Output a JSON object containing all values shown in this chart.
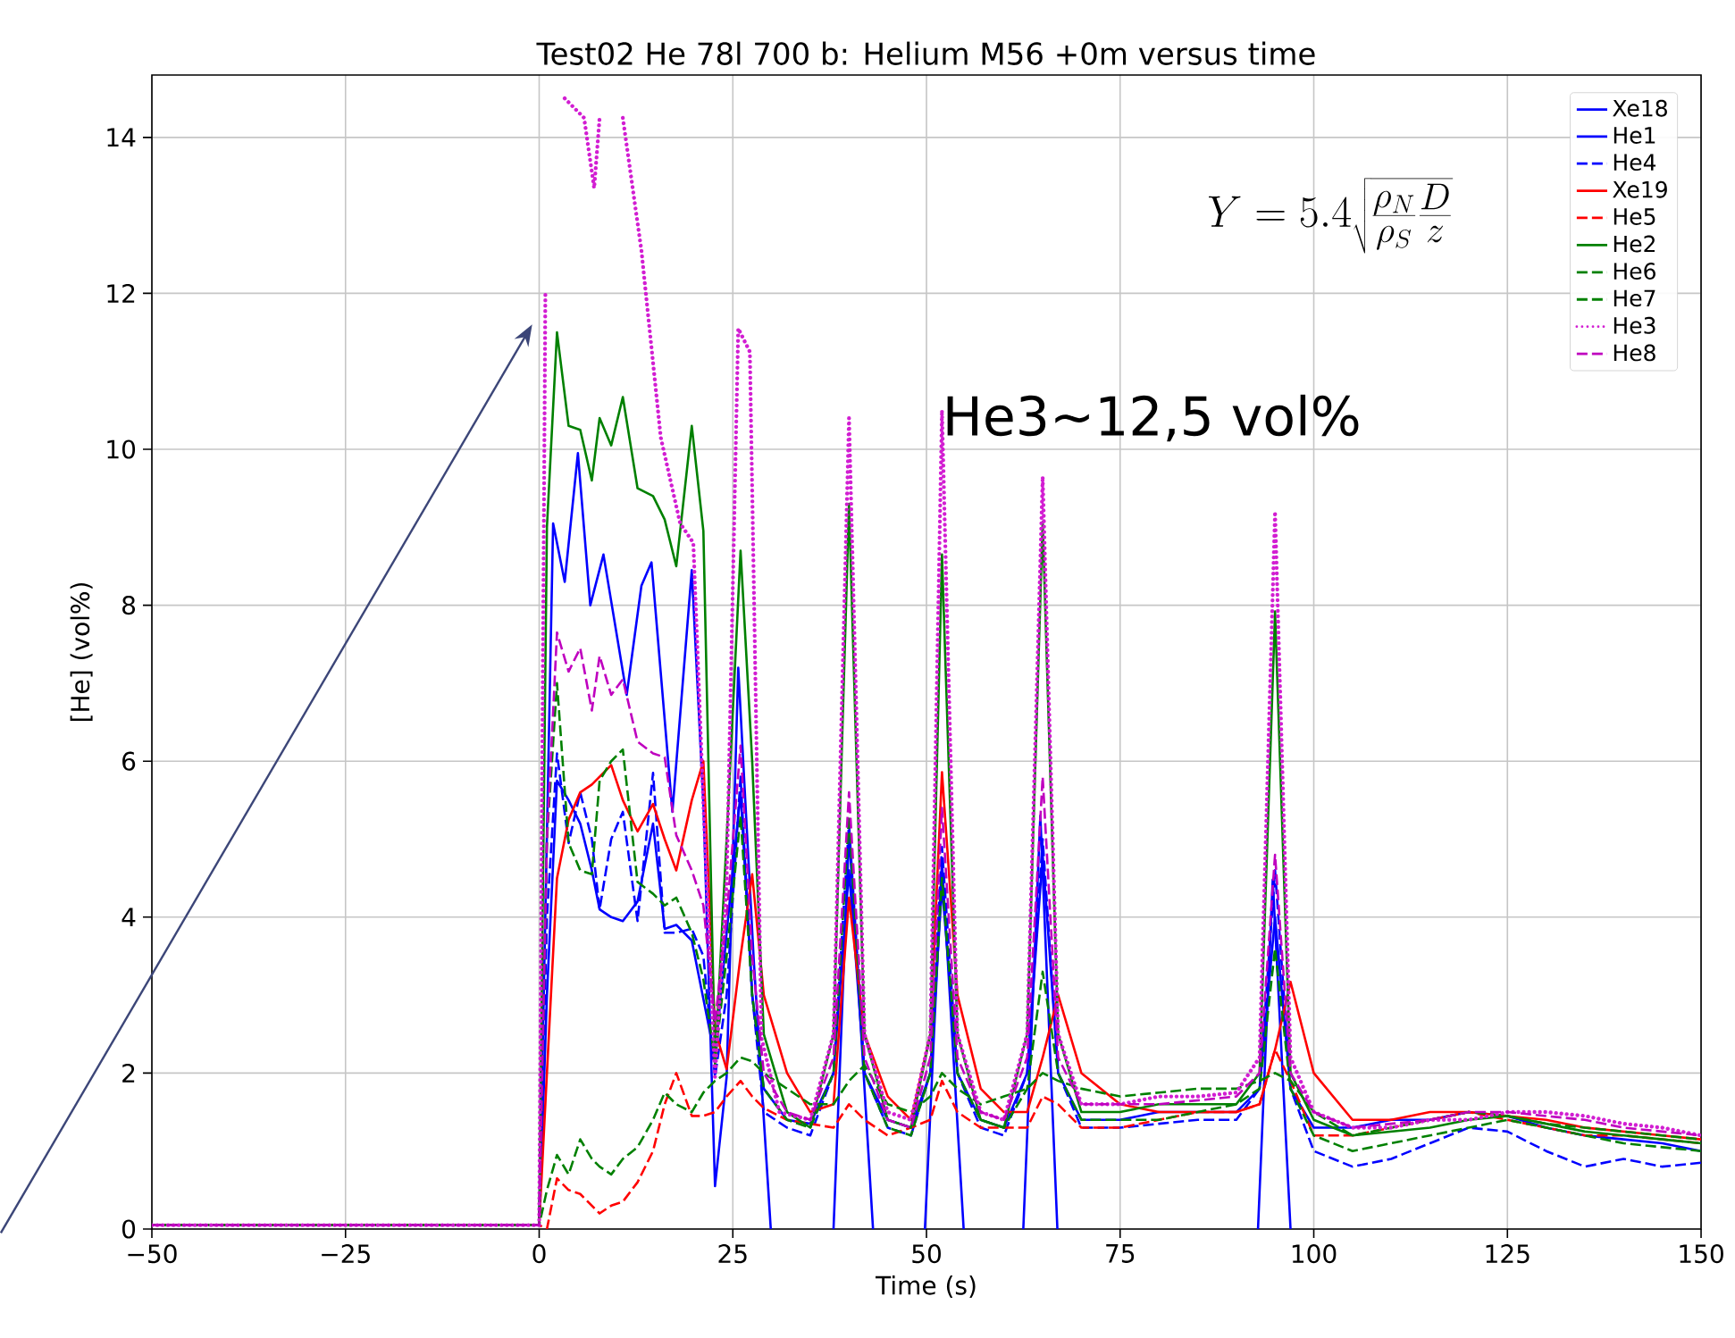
{
  "chart_data": {
    "type": "line",
    "title": "Test02 He 78l 700 b: Helium M56 +0m versus time",
    "xlabel": "Time (s)",
    "ylabel": "[He] (vol%)",
    "xlim": [
      -50,
      150
    ],
    "ylim": [
      0,
      14.8
    ],
    "xticks": [
      {
        "value": -50,
        "label": "−50"
      },
      {
        "value": -25,
        "label": "−25"
      },
      0,
      25,
      50,
      75,
      100,
      125,
      150
    ],
    "yticks": [
      0,
      2,
      4,
      6,
      8,
      10,
      12,
      14
    ],
    "grid": true,
    "legend": "top right",
    "annotations": [
      "Y = 5.4 \\sqrt{\\frac{\\rho_N}{\\rho_S}\\frac{D}{z}}",
      "He3~12,5 vol%"
    ],
    "x": [
      -50,
      -1,
      0,
      1,
      2.3,
      3.8,
      5.3,
      6.8,
      7.8,
      9.3,
      10.8,
      12.7,
      14.7,
      16.2,
      17.7,
      19.7,
      21.2,
      22.7,
      24.2,
      26,
      27.5,
      29,
      32,
      35,
      38,
      40,
      42,
      45,
      48,
      50.5,
      52,
      54,
      57,
      60,
      63,
      65,
      67,
      70,
      75,
      80,
      85,
      90,
      93,
      95,
      97,
      100,
      105,
      110,
      115,
      120,
      125,
      130,
      135,
      140,
      145,
      150
    ],
    "series": [
      {
        "name": "Xe18",
        "color": "#0000ff",
        "line_style": "solid",
        "values": [
          0.05,
          0.05,
          0.05,
          3.0,
          5.75,
          5.5,
          5.2,
          4.6,
          4.1,
          4.0,
          3.95,
          4.2,
          5.2,
          3.85,
          3.9,
          3.7,
          2.95,
          2.2,
          3.8,
          5.6,
          3.0,
          1.8,
          1.4,
          1.35,
          2.0,
          4.6,
          2.0,
          1.4,
          1.3,
          2.0,
          4.4,
          2.0,
          1.4,
          1.3,
          2.0,
          4.8,
          2.0,
          1.4,
          1.4,
          1.5,
          1.5,
          1.5,
          1.8,
          4.0,
          1.8,
          1.3,
          1.3,
          1.4,
          1.4,
          1.5,
          1.45,
          1.3,
          1.2,
          1.15,
          1.1,
          1.0
        ]
      },
      {
        "name": "He1",
        "color": "#0000ff",
        "line_style": "solid",
        "x": [
          -50,
          -1,
          0,
          1.8,
          3.3,
          5,
          6.6,
          8.3,
          11.3,
          13.2,
          14.5,
          17.2,
          19.7,
          21.2,
          22.7,
          24.2,
          25.7,
          27.7,
          29.9,
          34,
          38,
          40,
          43.1,
          46,
          49.8,
          52,
          54.8,
          58,
          62.5,
          64.7,
          66.9,
          80,
          92.8,
          94.7,
          97
        ],
        "values": [
          0.05,
          0.05,
          0.05,
          9.05,
          8.3,
          9.95,
          8.0,
          8.65,
          6.85,
          8.25,
          8.55,
          5.35,
          8.45,
          5.45,
          0.55,
          1.95,
          7.2,
          3.45,
          0,
          null,
          0,
          5.08,
          0,
          null,
          0,
          4.7,
          0,
          null,
          0,
          5.3,
          0,
          null,
          0,
          4.48,
          0
        ]
      },
      {
        "name": "He4",
        "color": "#0000ff",
        "line_style": "dashed",
        "values": [
          0.05,
          0.05,
          0.05,
          4.0,
          6.1,
          4.95,
          5.6,
          5.0,
          4.1,
          5.0,
          5.35,
          3.95,
          5.85,
          3.8,
          3.8,
          3.85,
          3.5,
          1.95,
          3.0,
          5.8,
          3.0,
          1.5,
          1.3,
          1.2,
          2.0,
          5.2,
          2.0,
          1.3,
          1.2,
          2.0,
          4.9,
          2.0,
          1.3,
          1.2,
          2.0,
          5.0,
          2.0,
          1.3,
          1.3,
          1.35,
          1.4,
          1.4,
          1.8,
          4.6,
          1.8,
          1.0,
          0.8,
          0.9,
          1.1,
          1.3,
          1.25,
          1.0,
          0.8,
          0.9,
          0.8,
          0.85
        ]
      },
      {
        "name": "Xe19",
        "color": "#ff0000",
        "line_style": "solid",
        "values": [
          0.05,
          0.05,
          0.05,
          2.0,
          4.5,
          5.25,
          5.6,
          5.7,
          5.8,
          5.95,
          5.5,
          5.1,
          5.45,
          5.0,
          4.6,
          5.5,
          6.0,
          2.55,
          2.05,
          3.5,
          4.55,
          3.0,
          2.0,
          1.5,
          1.6,
          4.25,
          2.5,
          1.7,
          1.4,
          2.5,
          5.86,
          3.0,
          1.8,
          1.5,
          1.5,
          2.2,
          3.0,
          2.0,
          1.6,
          1.5,
          1.5,
          1.5,
          1.6,
          2.3,
          3.17,
          2.0,
          1.4,
          1.4,
          1.5,
          1.5,
          1.45,
          1.4,
          1.3,
          1.25,
          1.2,
          1.15
        ]
      },
      {
        "name": "He5",
        "color": "#ff0000",
        "line_style": "dashed",
        "values": [
          0.05,
          0.05,
          0.05,
          0.0,
          0.65,
          0.5,
          0.45,
          0.3,
          0.2,
          0.3,
          0.35,
          0.6,
          1.0,
          1.6,
          2.0,
          1.45,
          1.45,
          1.5,
          1.7,
          1.9,
          1.7,
          1.55,
          1.4,
          1.35,
          1.3,
          1.6,
          1.4,
          1.2,
          1.3,
          1.4,
          1.9,
          1.5,
          1.3,
          1.3,
          1.3,
          1.7,
          1.6,
          1.3,
          1.3,
          1.4,
          1.5,
          1.5,
          1.6,
          2.3,
          1.9,
          1.2,
          1.2,
          1.3,
          1.4,
          1.5,
          1.4,
          1.3,
          1.2,
          1.2,
          1.15,
          1.1
        ]
      },
      {
        "name": "He2",
        "color": "#008000",
        "line_style": "solid",
        "values": [
          0.05,
          0.05,
          0.05,
          9.0,
          11.5,
          10.3,
          10.25,
          9.6,
          10.4,
          10.05,
          10.67,
          9.5,
          9.4,
          9.1,
          8.5,
          10.3,
          8.95,
          2.1,
          5.0,
          8.7,
          6.0,
          2.5,
          1.5,
          1.3,
          2.5,
          9.3,
          2.5,
          1.4,
          1.3,
          2.5,
          8.65,
          2.5,
          1.4,
          1.3,
          2.5,
          9.07,
          2.5,
          1.5,
          1.5,
          1.6,
          1.6,
          1.6,
          2.0,
          7.92,
          2.0,
          1.4,
          1.2,
          1.25,
          1.3,
          1.4,
          1.45,
          1.35,
          1.25,
          1.2,
          1.15,
          1.1
        ]
      },
      {
        "name": "He6",
        "color": "#008000",
        "line_style": "dashed",
        "values": [
          0.05,
          0.05,
          0.05,
          5.0,
          7.0,
          4.95,
          4.6,
          4.55,
          5.75,
          6.0,
          6.15,
          4.45,
          4.3,
          4.15,
          4.25,
          3.8,
          3.2,
          2.15,
          3.5,
          5.3,
          3.0,
          1.8,
          1.4,
          1.3,
          2.0,
          5.3,
          2.0,
          1.3,
          1.2,
          2.0,
          4.5,
          2.0,
          1.4,
          1.3,
          1.8,
          3.3,
          2.0,
          1.4,
          1.4,
          1.4,
          1.5,
          1.6,
          1.8,
          3.6,
          1.8,
          1.2,
          1.0,
          1.1,
          1.2,
          1.3,
          1.4,
          1.3,
          1.2,
          1.1,
          1.05,
          1.0
        ]
      },
      {
        "name": "He7",
        "color": "#008000",
        "line_style": "dashed",
        "values": [
          0.05,
          0.05,
          0.05,
          0.5,
          0.95,
          0.7,
          1.15,
          0.9,
          0.8,
          0.7,
          0.9,
          1.05,
          1.4,
          1.75,
          1.6,
          1.5,
          1.75,
          1.9,
          2.0,
          2.2,
          2.15,
          2.0,
          1.8,
          1.6,
          1.6,
          1.9,
          2.1,
          1.6,
          1.5,
          1.7,
          2.0,
          1.8,
          1.6,
          1.7,
          1.8,
          2.0,
          1.9,
          1.8,
          1.7,
          1.75,
          1.8,
          1.8,
          1.9,
          2.0,
          1.9,
          1.5,
          1.2,
          1.3,
          1.4,
          1.5,
          1.45,
          1.35,
          1.3,
          1.25,
          1.2,
          1.15
        ]
      },
      {
        "name": "He3",
        "color": "#d21ed2",
        "line_style": "dotted",
        "x": [
          -50,
          -1,
          0,
          0.8,
          1.5,
          3.3,
          5.8,
          7.1,
          7.8,
          9,
          10.8,
          13.2,
          15.7,
          18.2,
          19.9,
          21.2,
          22.7,
          24.2,
          25.7,
          27.2,
          28.7,
          31,
          35,
          38,
          40,
          42,
          45,
          48,
          50.5,
          52,
          54,
          57,
          60,
          63,
          65,
          67,
          70,
          75,
          80,
          85,
          90,
          93,
          95,
          97,
          100,
          105,
          110,
          115,
          120,
          125,
          130,
          135,
          140,
          145,
          150
        ],
        "values": [
          0.05,
          0.05,
          0.05,
          12,
          null,
          14.5,
          14.25,
          13.35,
          14.25,
          null,
          14.25,
          12.55,
          10.15,
          9.05,
          8.8,
          5.45,
          1.95,
          4.45,
          11.55,
          11.25,
          2.45,
          1.5,
          1.4,
          2.5,
          10.4,
          2.5,
          1.5,
          1.4,
          2.5,
          10.5,
          2.5,
          1.5,
          1.4,
          2.5,
          9.65,
          2.5,
          1.6,
          1.6,
          1.7,
          1.7,
          1.75,
          2.2,
          9.2,
          2.2,
          1.5,
          1.3,
          1.3,
          1.4,
          1.4,
          1.5,
          1.5,
          1.45,
          1.35,
          1.3,
          1.2
        ]
      },
      {
        "name": "He8",
        "color": "#bf00bf",
        "line_style": "dashed",
        "values": [
          0.05,
          0.05,
          0.05,
          5.0,
          7.65,
          7.15,
          7.45,
          6.65,
          7.35,
          6.85,
          7.05,
          6.25,
          6.1,
          6.05,
          5.05,
          4.6,
          4.15,
          2.65,
          4.0,
          6.2,
          3.5,
          2.0,
          1.5,
          1.4,
          2.2,
          5.6,
          2.2,
          1.4,
          1.3,
          2.2,
          5.4,
          2.2,
          1.5,
          1.4,
          2.2,
          5.8,
          2.2,
          1.6,
          1.6,
          1.6,
          1.65,
          1.7,
          2.0,
          4.8,
          2.0,
          1.5,
          1.3,
          1.35,
          1.4,
          1.5,
          1.5,
          1.45,
          1.4,
          1.3,
          1.25,
          1.2
        ]
      }
    ]
  }
}
